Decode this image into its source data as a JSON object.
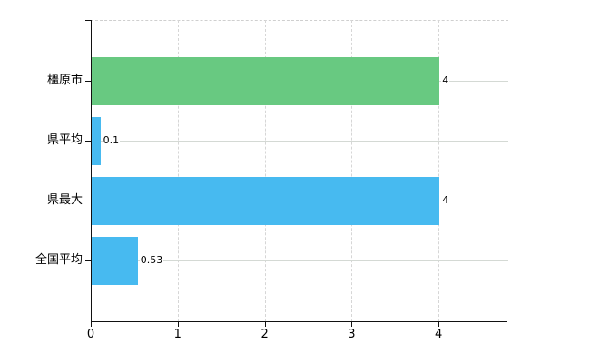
{
  "chart_data": {
    "type": "bar",
    "orientation": "horizontal",
    "title": "",
    "xlabel": "",
    "ylabel": "",
    "categories": [
      "橿原市",
      "県平均",
      "県最大",
      "全国平均"
    ],
    "values": [
      4,
      0.1,
      4,
      0.53
    ],
    "value_labels": [
      "4",
      "0.1",
      "4",
      "0.53"
    ],
    "series_names": [
      "kashihara-city",
      "prefecture-average",
      "prefecture-max",
      "national-average"
    ],
    "bar_colors": [
      "#68c981",
      "#47baf0",
      "#47baf0",
      "#47baf0"
    ],
    "x_ticks": [
      0,
      1,
      2,
      3,
      4
    ],
    "x_tick_labels": [
      "0",
      "1",
      "2",
      "3",
      "4"
    ],
    "xlim": [
      0,
      4.79
    ],
    "grid": "both",
    "legend": "none"
  },
  "colors": {
    "bar_green": "#68c981",
    "bar_blue": "#47baf0",
    "grid_horizontal": "#d4d9d4",
    "grid_vertical": "#d6d6d6",
    "axis": "#111111",
    "text": "#000000",
    "background": "#ffffff"
  }
}
